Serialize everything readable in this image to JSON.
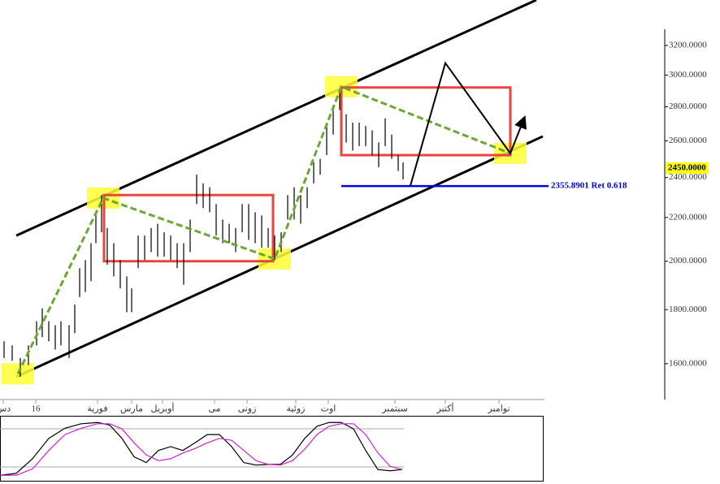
{
  "chart_data": {
    "type": "ohlc",
    "ylog": true,
    "xlim": [
      0,
      335
    ],
    "ylim": [
      1485,
      3533
    ],
    "yticks": [
      {
        "value": 1600,
        "label": "1600.0000"
      },
      {
        "value": 1800,
        "label": "1800.0000"
      },
      {
        "value": 2000,
        "label": "2000.0000"
      },
      {
        "value": 2200,
        "label": "2200.0000"
      },
      {
        "value": 2400,
        "label": "2400.0000"
      },
      {
        "value": 2600,
        "label": "2600.0000"
      },
      {
        "value": 2800,
        "label": "2800.0000"
      },
      {
        "value": 3000,
        "label": "3000.0000"
      },
      {
        "value": 3200,
        "label": "3200.0000"
      }
    ],
    "xticks": [
      {
        "value": 2,
        "label": "دس"
      },
      {
        "value": 22,
        "label": "16"
      },
      {
        "value": 60,
        "label": "فورية"
      },
      {
        "value": 81,
        "label": "مارس"
      },
      {
        "value": 100,
        "label": "أوبريل"
      },
      {
        "value": 132,
        "label": "مى"
      },
      {
        "value": 152,
        "label": "زونى"
      },
      {
        "value": 182,
        "label": "زوئية"
      },
      {
        "value": 202,
        "label": "اوت"
      },
      {
        "value": 243,
        "label": "سبتمبر"
      },
      {
        "value": 274,
        "label": "أكتبر"
      },
      {
        "value": 307,
        "label": "نوامبر"
      }
    ],
    "x": [
      2.5,
      7.5,
      12.5,
      17.5,
      22.5,
      26,
      30,
      34,
      37.5,
      42.5,
      46,
      49,
      52.5,
      56,
      59,
      62.5,
      66,
      70,
      74,
      78,
      81,
      85,
      89,
      93,
      97,
      101,
      105,
      109,
      113,
      117,
      121,
      125,
      129,
      133,
      137,
      141,
      145,
      149,
      153,
      157,
      161,
      165,
      169,
      173,
      177,
      181,
      185,
      189,
      193,
      197,
      201,
      205,
      209,
      213,
      217,
      221,
      225,
      229,
      233,
      237,
      241,
      245,
      248
    ],
    "high": [
      1680,
      1665,
      1620,
      1665,
      1755,
      1805,
      1755,
      1740,
      1755,
      1740,
      1820,
      1970,
      2005,
      2080,
      2225,
      2310,
      2150,
      2080,
      2005,
      1935,
      1885,
      2115,
      2115,
      2150,
      2170,
      2130,
      2115,
      2080,
      2080,
      2190,
      2415,
      2370,
      2350,
      2265,
      2190,
      2170,
      2150,
      2265,
      2265,
      2225,
      2210,
      2150,
      2115,
      2130,
      2310,
      2350,
      2310,
      2350,
      2480,
      2500,
      2685,
      2805,
      2910,
      2755,
      2705,
      2705,
      2685,
      2660,
      2590,
      2730,
      2635,
      2520,
      2480
    ],
    "low": [
      1620,
      1610,
      1555,
      1595,
      1665,
      1695,
      1680,
      1650,
      1665,
      1620,
      1710,
      1850,
      1870,
      1915,
      2080,
      2130,
      1985,
      1935,
      1885,
      1790,
      1790,
      1970,
      2005,
      2040,
      2020,
      2020,
      2005,
      1970,
      1900,
      2040,
      2265,
      2245,
      2225,
      2115,
      2080,
      2080,
      2040,
      2130,
      2095,
      2080,
      2060,
      2060,
      2005,
      2040,
      2190,
      2190,
      2170,
      2245,
      2370,
      2415,
      2520,
      2635,
      2780,
      2590,
      2545,
      2570,
      2570,
      2520,
      2455,
      2570,
      2500,
      2435,
      2390
    ],
    "color": "#000000",
    "channel": [
      {
        "x": [
          10,
          330
        ],
        "values": [
          2115,
          3533
        ],
        "color": "#000000"
      },
      {
        "x": [
          10,
          334
        ],
        "values": [
          1555,
          2625
        ],
        "color": "#000000"
      }
    ],
    "pivots": {
      "x": [
        11,
        63.5,
        169,
        210,
        314
      ],
      "values": [
        1565,
        2295,
        2010,
        2925,
        2530
      ],
      "color": "#6aa832",
      "highlight": "#ffff33"
    },
    "boxes": [
      {
        "x": [
          64,
          168
        ],
        "values": [
          2310,
          2000
        ],
        "color": "#e8463c"
      },
      {
        "x": [
          210,
          314
        ],
        "values": [
          2920,
          2520
        ],
        "color": "#e8463c"
      }
    ],
    "projection": {
      "x": [
        252.5,
        274,
        314,
        322.5
      ],
      "values": [
        2358,
        3080,
        2530,
        2730
      ],
      "color": "#000000"
    },
    "retracement": {
      "x": [
        210,
        337.5
      ],
      "value": 2355.8901,
      "label": "2355.8901 Ret 0.618",
      "color": "#0000dd"
    },
    "current_price": {
      "value": 2450,
      "label": "2450.0000",
      "color": "#ffff00"
    },
    "oscillator": {
      "ylim": [
        0,
        100
      ],
      "levels": [
        20,
        80
      ],
      "x": [
        0,
        10,
        20,
        30,
        40,
        50,
        60,
        67.5,
        75,
        82.5,
        90,
        97.5,
        105,
        112.5,
        120,
        127.5,
        135,
        142.5,
        150,
        157.5,
        165,
        172.5,
        180,
        187.5,
        195,
        202.5,
        210,
        217.5,
        225,
        232.5,
        240,
        247.5
      ],
      "series": [
        {
          "color": "#000000",
          "values": [
            7,
            10,
            33,
            65,
            81,
            88,
            90,
            86,
            65,
            36,
            27,
            46,
            52,
            46,
            58,
            71,
            71,
            52,
            27,
            23,
            24,
            24,
            39,
            65,
            84,
            90,
            90,
            80,
            46,
            16,
            14,
            16
          ]
        },
        {
          "color": "#d020d0",
          "values": [
            7,
            7,
            17,
            46,
            71,
            81,
            88,
            88,
            80,
            58,
            39,
            30,
            33,
            42,
            49,
            58,
            65,
            62,
            46,
            30,
            24,
            23,
            30,
            48,
            71,
            84,
            88,
            88,
            71,
            42,
            21,
            16
          ]
        }
      ]
    }
  }
}
